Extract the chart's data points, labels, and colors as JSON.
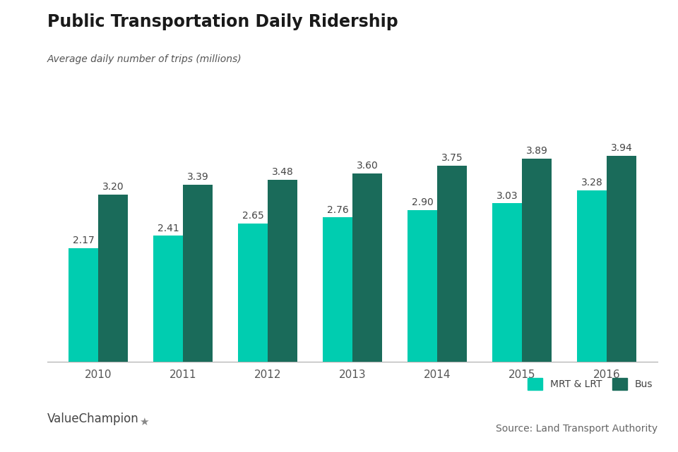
{
  "title": "Public Transportation Daily Ridership",
  "subtitle": "Average daily number of trips (millions)",
  "years": [
    "2010",
    "2011",
    "2012",
    "2013",
    "2014",
    "2015",
    "2016"
  ],
  "mrt_lrt": [
    2.17,
    2.41,
    2.65,
    2.76,
    2.9,
    3.03,
    3.28
  ],
  "bus": [
    3.2,
    3.39,
    3.48,
    3.6,
    3.75,
    3.89,
    3.94
  ],
  "mrt_color": "#00CDB0",
  "bus_color": "#1A6B5A",
  "bar_width": 0.35,
  "ylim": [
    0,
    4.5
  ],
  "legend_labels": [
    "MRT & LRT",
    "Bus"
  ],
  "source_text": "Source: Land Transport Authority",
  "brand_text": "ValueChampion",
  "background_color": "#ffffff",
  "title_fontsize": 17,
  "subtitle_fontsize": 10,
  "label_fontsize": 10,
  "tick_fontsize": 11,
  "legend_fontsize": 10,
  "source_fontsize": 10,
  "brand_fontsize": 12
}
